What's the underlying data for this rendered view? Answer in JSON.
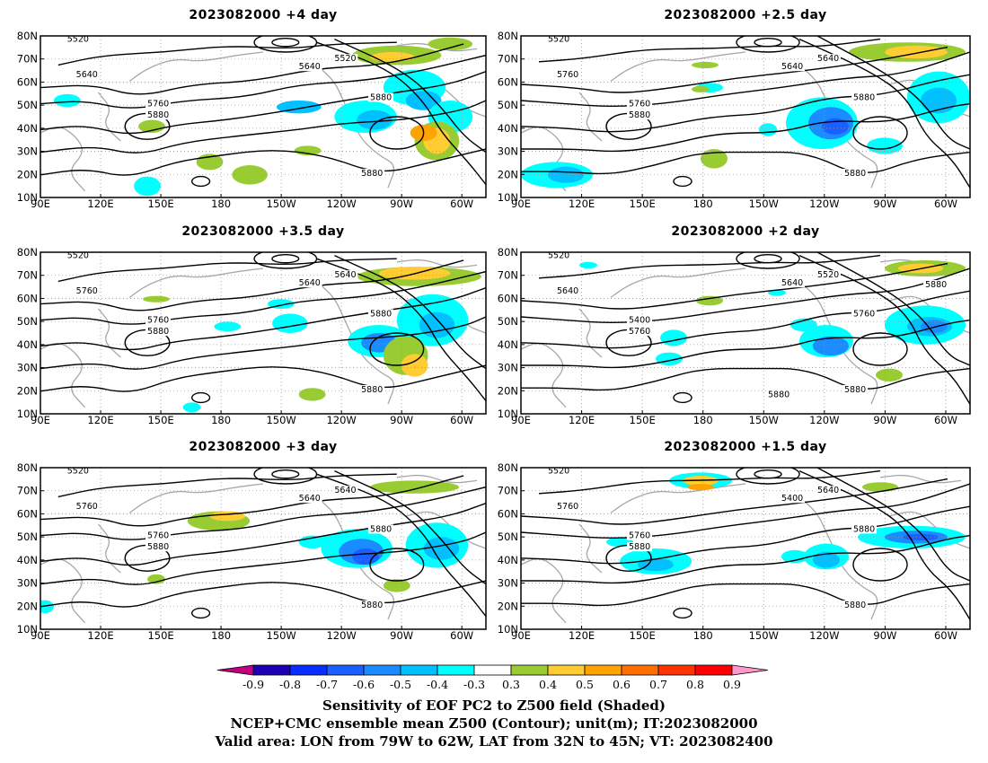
{
  "panels": [
    {
      "id": "p1",
      "title": "2023082000 +4 day",
      "contours": [
        "5520",
        "5520",
        "5640",
        "5640",
        "5760",
        "5880",
        "5880",
        "5880"
      ]
    },
    {
      "id": "p2",
      "title": "2023082000 +2.5 day",
      "contours": [
        "5520",
        "5640",
        "5640",
        "5760",
        "5760",
        "5880",
        "5880",
        "5880"
      ]
    },
    {
      "id": "p3",
      "title": "2023082000 +3.5 day",
      "contours": [
        "5520",
        "5640",
        "5640",
        "5760",
        "5760",
        "5880",
        "5880",
        "5880"
      ]
    },
    {
      "id": "p4",
      "title": "2023082000 +2 day",
      "contours": [
        "5520",
        "5520",
        "5640",
        "5640",
        "5400",
        "5760",
        "5760",
        "5880",
        "5880",
        "5880"
      ]
    },
    {
      "id": "p5",
      "title": "2023082000 +3 day",
      "contours": [
        "5520",
        "5640",
        "5640",
        "5760",
        "5760",
        "5880",
        "5880",
        "5880"
      ]
    },
    {
      "id": "p6",
      "title": "2023082000 +1.5 day",
      "contours": [
        "5520",
        "5640",
        "5400",
        "5760",
        "5760",
        "5880",
        "5880",
        "5880"
      ]
    }
  ],
  "lon_ticks": [
    "90E",
    "120E",
    "150E",
    "180",
    "150W",
    "120W",
    "90W",
    "60W"
  ],
  "lat_ticks": [
    "10N",
    "20N",
    "30N",
    "40N",
    "50N",
    "60N",
    "70N",
    "80N"
  ],
  "colorbar": {
    "labels": [
      "-0.9",
      "-0.8",
      "-0.7",
      "-0.6",
      "-0.5",
      "-0.4",
      "-0.3",
      "0.3",
      "0.4",
      "0.5",
      "0.6",
      "0.7",
      "0.8",
      "0.9"
    ],
    "colors": [
      "#c0007f",
      "#1e00b4",
      "#0a2dff",
      "#1a5fff",
      "#1a8cff",
      "#00c0ff",
      "#00ffff",
      "#ffffff",
      "#99cc33",
      "#ffcc33",
      "#ffa300",
      "#ff6f00",
      "#ff3300",
      "#ff0000",
      "#ff99cc"
    ]
  },
  "captions": {
    "line1": "Sensitivity of EOF PC2 to Z500 field (Shaded)",
    "line2": "NCEP+CMC ensemble mean Z500 (Contour); unit(m); IT:2023082000",
    "line3": "Valid area: LON from 79W to 62W, LAT from 32N to 45N; VT: 2023082400"
  }
}
